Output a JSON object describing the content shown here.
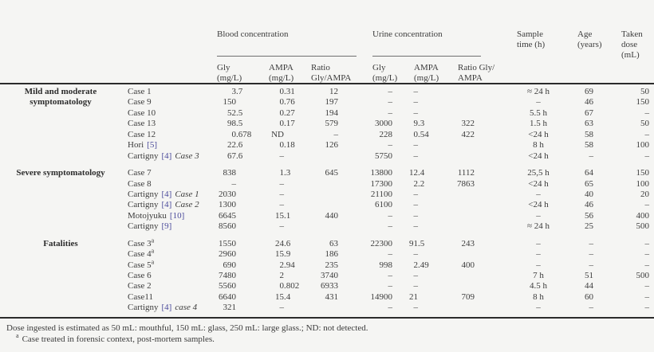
{
  "colors": {
    "background": "#f5f5f3",
    "text": "#3c3c3c",
    "citation_link": "#4b4b9b",
    "rule": "#2b2b2b"
  },
  "header": {
    "blood": {
      "label": "Blood concentration",
      "sub": [
        [
          "Gly",
          "(mg/L)"
        ],
        [
          "AMPA",
          "(mg/L)"
        ],
        [
          "Ratio",
          "Gly/AMPA"
        ]
      ]
    },
    "urine": {
      "label": "Urine concentration",
      "sub": [
        [
          "Gly",
          "(mg/L)"
        ],
        [
          "AMPA",
          "(mg/L)"
        ],
        [
          "Ratio Gly/",
          "AMPA"
        ]
      ]
    },
    "sample_time": [
      "Sample",
      "time (h)"
    ],
    "age": [
      "Age",
      "(years)"
    ],
    "dose": [
      "Taken",
      "dose",
      "(mL)"
    ]
  },
  "table": {
    "sections": [
      {
        "label": "Mild and moderate symptomatology",
        "rows": [
          {
            "case": {
              "name": "Case 1"
            },
            "b_gly": "3.7",
            "b_ampa": "0.31",
            "b_ratio": "12",
            "u_gly": "–",
            "u_ampa": "–",
            "u_ratio": "",
            "time": "≈ 24 h",
            "age": "69",
            "dose": "50"
          },
          {
            "case": {
              "name": "Case 9"
            },
            "b_gly": "150",
            "b_ampa": "0.76",
            "b_ratio": "197",
            "u_gly": "–",
            "u_ampa": "–",
            "u_ratio": "",
            "time": "–",
            "age": "46",
            "dose": "150"
          },
          {
            "case": {
              "name": "Case 10"
            },
            "b_gly": "52.5",
            "b_ampa": "0.27",
            "b_ratio": "194",
            "u_gly": "–",
            "u_ampa": "–",
            "u_ratio": "",
            "time": "5.5 h",
            "age": "67",
            "dose": "–"
          },
          {
            "case": {
              "name": "Case 13"
            },
            "b_gly": "98.5",
            "b_ampa": "0.17",
            "b_ratio": "579",
            "u_gly": "3000",
            "u_ampa": "9.3",
            "u_ratio": "322",
            "time": "1.5 h",
            "age": "63",
            "dose": "50"
          },
          {
            "case": {
              "name": "Case 12"
            },
            "b_gly": "0.678",
            "b_ampa": "ND",
            "b_ratio": "–",
            "u_gly": "228",
            "u_ampa": "0.54",
            "u_ratio": "422",
            "time": "<24 h",
            "age": "58",
            "dose": "–"
          },
          {
            "case": {
              "name": "Hori",
              "ref": "[5]"
            },
            "b_gly": "22.6",
            "b_ampa": "0.18",
            "b_ratio": "126",
            "u_gly": "–",
            "u_ampa": "–",
            "u_ratio": "",
            "time": "8 h",
            "age": "58",
            "dose": "100"
          },
          {
            "case": {
              "name": "Cartigny",
              "ref": "[4]",
              "note": "Case 3"
            },
            "b_gly": "67.6",
            "b_ampa": "–",
            "b_ratio": "",
            "u_gly": "5750",
            "u_ampa": "–",
            "u_ratio": "",
            "time": "<24 h",
            "age": "–",
            "dose": "–"
          }
        ]
      },
      {
        "label": "Severe symptomatology",
        "rows": [
          {
            "case": {
              "name": "Case 7"
            },
            "b_gly": "838",
            "b_ampa": "1.3",
            "b_ratio": "645",
            "u_gly": "13800",
            "u_ampa": "12.4",
            "u_ratio": "1112",
            "time": "25,5 h",
            "age": "64",
            "dose": "150"
          },
          {
            "case": {
              "name": "Case 8"
            },
            "b_gly": "–",
            "b_ampa": "–",
            "b_ratio": "",
            "u_gly": "17300",
            "u_ampa": "2.2",
            "u_ratio": "7863",
            "time": "<24 h",
            "age": "65",
            "dose": "100"
          },
          {
            "case": {
              "name": "Cartigny",
              "ref": "[4]",
              "note": "Case 1"
            },
            "b_gly": "2030",
            "b_ampa": "–",
            "b_ratio": "",
            "u_gly": "21100",
            "u_ampa": "–",
            "u_ratio": "",
            "time": "–",
            "age": "40",
            "dose": "20"
          },
          {
            "case": {
              "name": "Cartigny",
              "ref": "[4]",
              "note": "Case 2"
            },
            "b_gly": "1300",
            "b_ampa": "–",
            "b_ratio": "",
            "u_gly": "6100",
            "u_ampa": "–",
            "u_ratio": "",
            "time": "<24 h",
            "age": "46",
            "dose": "–"
          },
          {
            "case": {
              "name": "Motojyuku",
              "ref": "[10]"
            },
            "b_gly": "6645",
            "b_ampa": "15.1",
            "b_ratio": "440",
            "u_gly": "–",
            "u_ampa": "–",
            "u_ratio": "",
            "time": "–",
            "age": "56",
            "dose": "400"
          },
          {
            "case": {
              "name": "Cartigny",
              "ref": "[9]"
            },
            "b_gly": "8560",
            "b_ampa": "–",
            "b_ratio": "",
            "u_gly": "–",
            "u_ampa": "–",
            "u_ratio": "",
            "time": "≈ 24 h",
            "age": "25",
            "dose": "500"
          }
        ]
      },
      {
        "label": "Fatalities",
        "rows": [
          {
            "case": {
              "name": "Case 3",
              "sup": "a"
            },
            "b_gly": "1550",
            "b_ampa": "24.6",
            "b_ratio": "63",
            "u_gly": "22300",
            "u_ampa": "91.5",
            "u_ratio": "243",
            "time": "–",
            "age": "–",
            "dose": "–"
          },
          {
            "case": {
              "name": "Case 4",
              "sup": "a"
            },
            "b_gly": "2960",
            "b_ampa": "15.9",
            "b_ratio": "186",
            "u_gly": "–",
            "u_ampa": "–",
            "u_ratio": "",
            "time": "–",
            "age": "–",
            "dose": "–"
          },
          {
            "case": {
              "name": "Case 5",
              "sup": "a"
            },
            "b_gly": "690",
            "b_ampa": "2.94",
            "b_ratio": "235",
            "u_gly": "998",
            "u_ampa": "2.49",
            "u_ratio": "400",
            "time": "–",
            "age": "–",
            "dose": "–"
          },
          {
            "case": {
              "name": "Case 6"
            },
            "b_gly": "7480",
            "b_ampa": "2",
            "b_ratio": "3740",
            "u_gly": "–",
            "u_ampa": "–",
            "u_ratio": "",
            "time": "7 h",
            "age": "51",
            "dose": "500"
          },
          {
            "case": {
              "name": "Case 2"
            },
            "b_gly": "5560",
            "b_ampa": "0.802",
            "b_ratio": "6933",
            "u_gly": "–",
            "u_ampa": "–",
            "u_ratio": "",
            "time": "4.5 h",
            "age": "44",
            "dose": "–"
          },
          {
            "case": {
              "name": "Case11"
            },
            "b_gly": "6640",
            "b_ampa": "15.4",
            "b_ratio": "431",
            "u_gly": "14900",
            "u_ampa": "21",
            "u_ratio": "709",
            "time": "8 h",
            "age": "60",
            "dose": "–"
          },
          {
            "case": {
              "name": "Cartigny",
              "ref": "[4]",
              "note": "case 4"
            },
            "b_gly": "321",
            "b_ampa": "–",
            "b_ratio": "",
            "u_gly": "–",
            "u_ampa": "–",
            "u_ratio": "",
            "time": "–",
            "age": "–",
            "dose": "–"
          }
        ]
      }
    ]
  },
  "footnotes": {
    "dose_note": "Dose ingested is estimated as 50 mL: mouthful, 150 mL: glass, 250 mL: large glass.; ND: not detected.",
    "marker": "a",
    "forensic_note": "Case treated in forensic context, post-mortem samples."
  }
}
